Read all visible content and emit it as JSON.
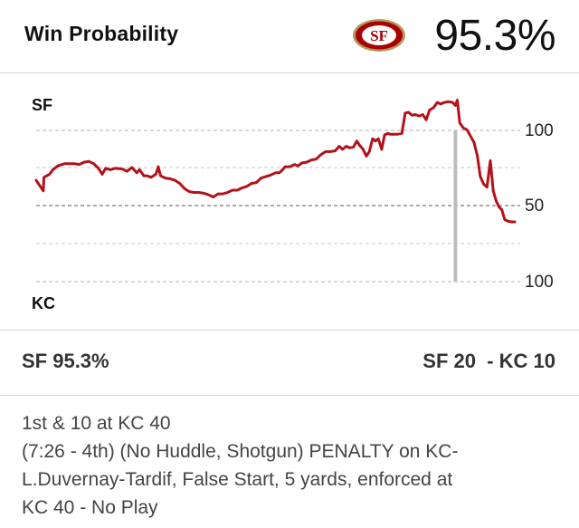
{
  "header": {
    "title": "Win Probability",
    "team_logo_text": "SF",
    "win_probability": "95.3%"
  },
  "colors": {
    "line": "#b3121b",
    "logo_red": "#aa0000",
    "logo_gold": "#b3995d",
    "grid": "#9a9a9a",
    "current_marker": "#bdbdbd"
  },
  "chart_data": {
    "type": "line",
    "title": "Win Probability",
    "top_team_label": "SF",
    "bottom_team_label": "KC",
    "y_tick_labels": [
      "100",
      "50",
      "100"
    ],
    "ylim": [
      -100,
      100
    ],
    "x_range": [
      0,
      100
    ],
    "current_play_x": 87.6,
    "series": [
      {
        "name": "SF win probability (positive = SF favored)",
        "points": [
          [
            0,
            34
          ],
          [
            1.5,
            20
          ],
          [
            1.6,
            38
          ],
          [
            2.8,
            42
          ],
          [
            3.5,
            48
          ],
          [
            4.5,
            53
          ],
          [
            6,
            56
          ],
          [
            8,
            56
          ],
          [
            9,
            55
          ],
          [
            10,
            58
          ],
          [
            11,
            59
          ],
          [
            12,
            56
          ],
          [
            13,
            50
          ],
          [
            13.8,
            42
          ],
          [
            14.5,
            50
          ],
          [
            15.5,
            48
          ],
          [
            16.5,
            50
          ],
          [
            18,
            49
          ],
          [
            19,
            46
          ],
          [
            20,
            51
          ],
          [
            21,
            44
          ],
          [
            21.6,
            48
          ],
          [
            22.5,
            40
          ],
          [
            23.2,
            40
          ],
          [
            24,
            38
          ],
          [
            25,
            42
          ],
          [
            25.5,
            52
          ],
          [
            26,
            40
          ],
          [
            27,
            37
          ],
          [
            28,
            36
          ],
          [
            29,
            34
          ],
          [
            30,
            30
          ],
          [
            31,
            23
          ],
          [
            32,
            19
          ],
          [
            33,
            18
          ],
          [
            34,
            18
          ],
          [
            35,
            17
          ],
          [
            36,
            15
          ],
          [
            37,
            12
          ],
          [
            38,
            16
          ],
          [
            39,
            16
          ],
          [
            40,
            18
          ],
          [
            41,
            21
          ],
          [
            42,
            21
          ],
          [
            43,
            24
          ],
          [
            44,
            26
          ],
          [
            45,
            30
          ],
          [
            46,
            31
          ],
          [
            47,
            37
          ],
          [
            48,
            39
          ],
          [
            49,
            41
          ],
          [
            50,
            44
          ],
          [
            50.8,
            44
          ],
          [
            51.5,
            48
          ],
          [
            52,
            52
          ],
          [
            53,
            52
          ],
          [
            54,
            55
          ],
          [
            54.7,
            53
          ],
          [
            55.5,
            57
          ],
          [
            56.5,
            58
          ],
          [
            57.5,
            61
          ],
          [
            58.5,
            62
          ],
          [
            59.5,
            68
          ],
          [
            60.5,
            72
          ],
          [
            61.5,
            72
          ],
          [
            62.5,
            73
          ],
          [
            63.3,
            79
          ],
          [
            64,
            75
          ],
          [
            64.8,
            79
          ],
          [
            65.5,
            77
          ],
          [
            66.3,
            78
          ],
          [
            67,
            86
          ],
          [
            67.6,
            80
          ],
          [
            68.2,
            76
          ],
          [
            69,
            66
          ],
          [
            69.6,
            72
          ],
          [
            70.3,
            89
          ],
          [
            70.9,
            86
          ],
          [
            71.5,
            89
          ],
          [
            72.2,
            75
          ],
          [
            72.8,
            94
          ],
          [
            73.5,
            96
          ],
          [
            74,
            95
          ],
          [
            74.8,
            95
          ],
          [
            75.5,
            95
          ],
          [
            76.4,
            96
          ],
          [
            77.1,
            123
          ],
          [
            77.8,
            124
          ],
          [
            78.5,
            120
          ],
          [
            79.2,
            121
          ],
          [
            80,
            119
          ],
          [
            80.8,
            121
          ],
          [
            81.5,
            114
          ],
          [
            82.2,
            127
          ],
          [
            83,
            130
          ],
          [
            83.8,
            137
          ],
          [
            84.5,
            135
          ],
          [
            85.3,
            137
          ],
          [
            86.1,
            138
          ],
          [
            87,
            137
          ],
          [
            87.6,
            133
          ],
          [
            88,
            140
          ],
          [
            88.5,
            110
          ],
          [
            89.3,
            103
          ],
          [
            90,
            101
          ],
          [
            90.8,
            92
          ],
          [
            91.5,
            84
          ],
          [
            92.2,
            66
          ],
          [
            92.8,
            39
          ],
          [
            93.5,
            29
          ],
          [
            94.2,
            25
          ],
          [
            94.9,
            60
          ],
          [
            95.5,
            20
          ],
          [
            96.1,
            7
          ],
          [
            96.7,
            -1
          ],
          [
            97.3,
            -5
          ],
          [
            97.9,
            -18
          ],
          [
            98.6,
            -20
          ],
          [
            99.3,
            -21
          ],
          [
            100,
            -21
          ]
        ]
      }
    ]
  },
  "summary": {
    "win_text": "SF 95.3%",
    "score_text": "SF 20  - KC 10"
  },
  "play": {
    "down_distance": "1st & 10 at KC 40",
    "description_lines": [
      "(7:26 - 4th) (No Huddle, Shotgun) PENALTY on KC-",
      "L.Duvernay-Tardif, False Start, 5 yards, enforced at",
      "KC 40 - No Play"
    ]
  }
}
